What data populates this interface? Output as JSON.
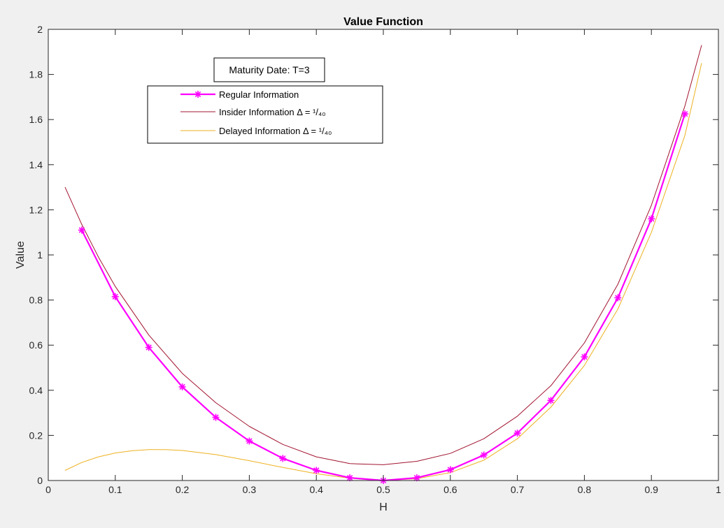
{
  "colors": {
    "background": "#f0f0f0",
    "plot_background": "#ffffff",
    "regular": "#ff00ff",
    "insider": "#a2142f",
    "delayed": "#edb120"
  },
  "chart_data": {
    "type": "line",
    "title": "Value Function",
    "xlabel": "H",
    "ylabel": "Value",
    "xlim": [
      0,
      1
    ],
    "ylim": [
      0,
      2
    ],
    "xticks": [
      "0",
      "0.1",
      "0.2",
      "0.3",
      "0.4",
      "0.5",
      "0.6",
      "0.7",
      "0.8",
      "0.9",
      "1"
    ],
    "yticks": [
      "0",
      "0.2",
      "0.4",
      "0.6",
      "0.8",
      "1",
      "1.2",
      "1.4",
      "1.6",
      "1.8",
      "2"
    ],
    "grid": false,
    "legend_placement": "top-left",
    "annotation": "Maturity Date: T=3",
    "series": [
      {
        "name": "Regular Information",
        "marker": "asterisk",
        "x": [
          0.05,
          0.1,
          0.15,
          0.2,
          0.25,
          0.3,
          0.35,
          0.4,
          0.45,
          0.5,
          0.55,
          0.6,
          0.65,
          0.7,
          0.75,
          0.8,
          0.85,
          0.9,
          0.95
        ],
        "y": [
          1.11,
          0.815,
          0.59,
          0.415,
          0.28,
          0.175,
          0.098,
          0.045,
          0.012,
          0.0,
          0.012,
          0.048,
          0.113,
          0.21,
          0.355,
          0.548,
          0.81,
          1.16,
          1.625
        ]
      },
      {
        "name": "Insider Information Δ = ¹/₄₀",
        "marker": "none",
        "x": [
          0.025,
          0.05,
          0.075,
          0.1,
          0.15,
          0.2,
          0.25,
          0.3,
          0.35,
          0.4,
          0.45,
          0.5,
          0.55,
          0.6,
          0.65,
          0.7,
          0.75,
          0.8,
          0.85,
          0.9,
          0.95,
          0.975
        ],
        "y": [
          1.3,
          1.135,
          0.99,
          0.86,
          0.645,
          0.475,
          0.345,
          0.24,
          0.16,
          0.105,
          0.075,
          0.07,
          0.085,
          0.12,
          0.185,
          0.285,
          0.42,
          0.61,
          0.87,
          1.22,
          1.66,
          1.93
        ]
      },
      {
        "name": "Delayed Information Δ = ¹/₄₀",
        "marker": "none",
        "x": [
          0.025,
          0.05,
          0.075,
          0.1,
          0.125,
          0.15,
          0.175,
          0.2,
          0.25,
          0.3,
          0.35,
          0.4,
          0.45,
          0.5,
          0.55,
          0.6,
          0.65,
          0.7,
          0.75,
          0.8,
          0.85,
          0.9,
          0.95,
          0.975
        ],
        "y": [
          0.045,
          0.08,
          0.105,
          0.122,
          0.132,
          0.137,
          0.137,
          0.133,
          0.115,
          0.088,
          0.058,
          0.03,
          0.01,
          0.0,
          0.008,
          0.035,
          0.09,
          0.185,
          0.325,
          0.51,
          0.76,
          1.1,
          1.53,
          1.85
        ]
      }
    ]
  }
}
